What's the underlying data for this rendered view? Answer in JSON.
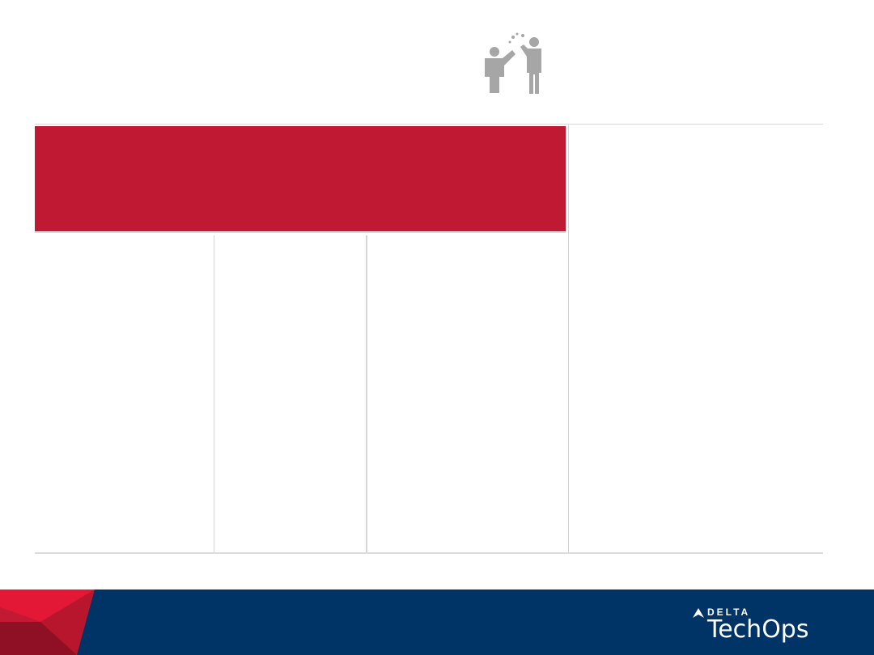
{
  "slide": {
    "icon": "people-high-five-icon",
    "accent_color": "#c01933",
    "footer_color": "#003366"
  },
  "footer": {
    "brand_top": "DELTA",
    "brand_name": "TechOps"
  }
}
